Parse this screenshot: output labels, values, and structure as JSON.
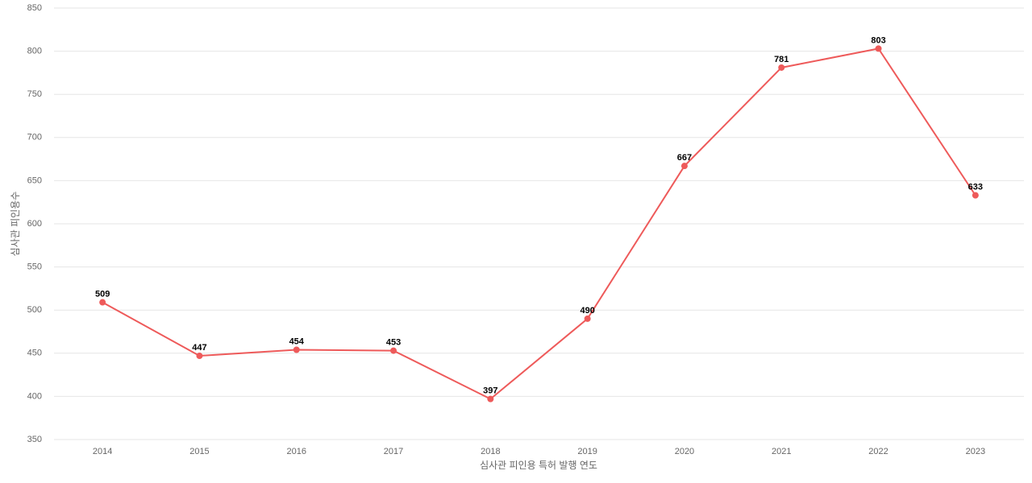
{
  "chart_data": {
    "type": "line",
    "x_label": "심사관 피인용 특허 발행 연도",
    "y_label": "심사관 피인용수",
    "categories": [
      "2014",
      "2015",
      "2016",
      "2017",
      "2018",
      "2019",
      "2020",
      "2021",
      "2022",
      "2023"
    ],
    "values": [
      509,
      447,
      454,
      453,
      397,
      490,
      667,
      781,
      803,
      633
    ],
    "color": "#ee5a5a",
    "ylim": [
      350,
      850
    ],
    "yticks": [
      350,
      400,
      450,
      500,
      550,
      600,
      650,
      700,
      750,
      800,
      850
    ],
    "grid": true
  }
}
